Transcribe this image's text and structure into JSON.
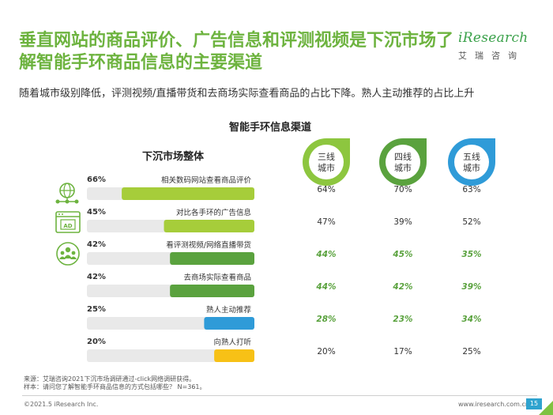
{
  "header": {
    "title": "垂直网站的商品评价、广告信息和评测视频是下沉市场了解智能手环商品信息的主要渠道",
    "subtitle": "随着城市级别降低，评测视频/直播带货和去商场实际查看商品的占比下降。熟人主动推荐的占比上升"
  },
  "logo": {
    "brand": "iResearch",
    "sub": "艾瑞咨询"
  },
  "colors": {
    "title_green": "#6db33f",
    "dark_green": "#5aa23e",
    "blue": "#2f9bd8",
    "yellow": "#f7c116",
    "track": "#e9e9e9",
    "icon": "#6db33f"
  },
  "chart_data": {
    "type": "bar",
    "title": "智能手环信息渠道",
    "left_title": "下沉市场整体",
    "categories": [
      "相关数码网站查看商品评价",
      "对比各手环的广告信息",
      "看评测视频/网络直播带货",
      "去商场实际查看商品",
      "熟人主动推荐",
      "向熟人打听"
    ],
    "values": [
      66,
      45,
      42,
      42,
      25,
      20
    ],
    "value_labels": [
      "66%",
      "45%",
      "42%",
      "42%",
      "25%",
      "20%"
    ],
    "bar_colors": [
      "#a6cd3a",
      "#a6cd3a",
      "#5aa23e",
      "#5aa23e",
      "#2f9bd8",
      "#f7c116"
    ],
    "ylim": [
      0,
      100
    ],
    "icons": [
      "globe-network-icon",
      "ad-window-icon",
      "people-group-icon"
    ],
    "tiers": [
      {
        "name": "三线\n城市",
        "color": "#8dc63f",
        "values": [
          "64%",
          "47%",
          "44%",
          "44%",
          "28%",
          "20%"
        ]
      },
      {
        "name": "四线\n城市",
        "color": "#5aa23e",
        "values": [
          "70%",
          "39%",
          "45%",
          "42%",
          "23%",
          "17%"
        ]
      },
      {
        "name": "五线\n城市",
        "color": "#2f9bd8",
        "values": [
          "63%",
          "52%",
          "35%",
          "39%",
          "34%",
          "25%"
        ]
      }
    ],
    "highlight_rows": [
      2,
      3,
      4
    ]
  },
  "footer": {
    "source": "来源：艾瑞咨询2021下沉市场调研通过-click网络调研获得。",
    "sample": "样本：请问您了解智能手环商品信息的方式包括哪些？ N=361。",
    "copyright": "©2021.5 iResearch Inc.",
    "website": "www.iresearch.com.cn",
    "page": "15"
  }
}
